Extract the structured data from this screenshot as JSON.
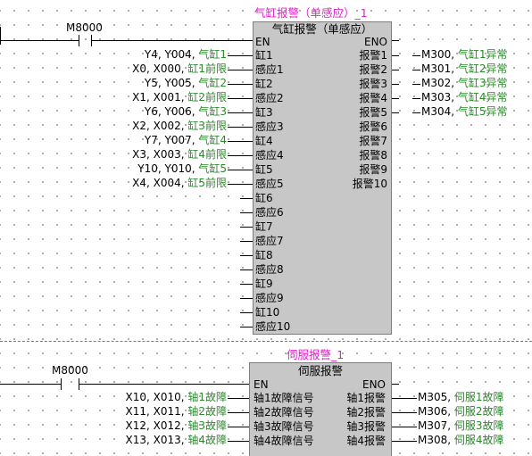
{
  "block1": {
    "instance_name": "气缸报警（单感应）_1",
    "title": "气缸报警（单感应）",
    "contact": "M8000",
    "en": "EN",
    "eno": "ENO",
    "inputs": [
      {
        "pin": "缸1",
        "addr": "Y4, Y004, ",
        "cmt": "气缸1"
      },
      {
        "pin": "感应1",
        "addr": "X0, X000, ",
        "cmt": "缸1前限"
      },
      {
        "pin": "缸2",
        "addr": "Y5, Y005, ",
        "cmt": "气缸2"
      },
      {
        "pin": "感应2",
        "addr": "X1, X001, ",
        "cmt": "缸2前限"
      },
      {
        "pin": "缸3",
        "addr": "Y6, Y006, ",
        "cmt": "气缸3"
      },
      {
        "pin": "感应3",
        "addr": "X2, X002, ",
        "cmt": "缸3前限"
      },
      {
        "pin": "缸4",
        "addr": "Y7, Y007, ",
        "cmt": "气缸4"
      },
      {
        "pin": "感应4",
        "addr": "X3, X003, ",
        "cmt": "缸4前限"
      },
      {
        "pin": "缸5",
        "addr": "Y10, Y010, ",
        "cmt": "气缸5"
      },
      {
        "pin": "感应5",
        "addr": "X4, X004, ",
        "cmt": "缸5前限"
      },
      {
        "pin": "缸6",
        "addr": "",
        "cmt": ""
      },
      {
        "pin": "感应6",
        "addr": "",
        "cmt": ""
      },
      {
        "pin": "缸7",
        "addr": "",
        "cmt": ""
      },
      {
        "pin": "感应7",
        "addr": "",
        "cmt": ""
      },
      {
        "pin": "缸8",
        "addr": "",
        "cmt": ""
      },
      {
        "pin": "感应8",
        "addr": "",
        "cmt": ""
      },
      {
        "pin": "缸9",
        "addr": "",
        "cmt": ""
      },
      {
        "pin": "感应9",
        "addr": "",
        "cmt": ""
      },
      {
        "pin": "缸10",
        "addr": "",
        "cmt": ""
      },
      {
        "pin": "感应10",
        "addr": "",
        "cmt": ""
      }
    ],
    "outputs": [
      {
        "pin": "报警1",
        "addr": "M300, ",
        "cmt": "气缸1异常"
      },
      {
        "pin": "报警2",
        "addr": "M301, ",
        "cmt": "气缸2异常"
      },
      {
        "pin": "报警3",
        "addr": "M302, ",
        "cmt": "气缸3异常"
      },
      {
        "pin": "报警4",
        "addr": "M303, ",
        "cmt": "气缸4异常"
      },
      {
        "pin": "报警5",
        "addr": "M304, ",
        "cmt": "气缸5异常"
      },
      {
        "pin": "报警6",
        "addr": "",
        "cmt": ""
      },
      {
        "pin": "报警7",
        "addr": "",
        "cmt": ""
      },
      {
        "pin": "报警8",
        "addr": "",
        "cmt": ""
      },
      {
        "pin": "报警9",
        "addr": "",
        "cmt": ""
      },
      {
        "pin": "报警10",
        "addr": "",
        "cmt": ""
      }
    ]
  },
  "block2": {
    "instance_name": "伺服报警_1",
    "title": "伺服报警",
    "contact": "M8000",
    "en": "EN",
    "eno": "ENO",
    "inputs": [
      {
        "pin": "轴1故障信号",
        "addr": "X10, X010, ",
        "cmt": "轴1故障"
      },
      {
        "pin": "轴2故障信号",
        "addr": "X11, X011, ",
        "cmt": "轴2故障"
      },
      {
        "pin": "轴3故障信号",
        "addr": "X12, X012, ",
        "cmt": "轴3故障"
      },
      {
        "pin": "轴4故障信号",
        "addr": "X13, X013, ",
        "cmt": "轴4故障"
      }
    ],
    "outputs": [
      {
        "pin": "轴1报警",
        "addr": "M305, ",
        "cmt": "伺服1故障"
      },
      {
        "pin": "轴2报警",
        "addr": "M306, ",
        "cmt": "伺服2故障"
      },
      {
        "pin": "轴3报警",
        "addr": "M307, ",
        "cmt": "伺服3故障"
      },
      {
        "pin": "轴4报警",
        "addr": "M308, ",
        "cmt": "伺服4故障"
      }
    ]
  }
}
